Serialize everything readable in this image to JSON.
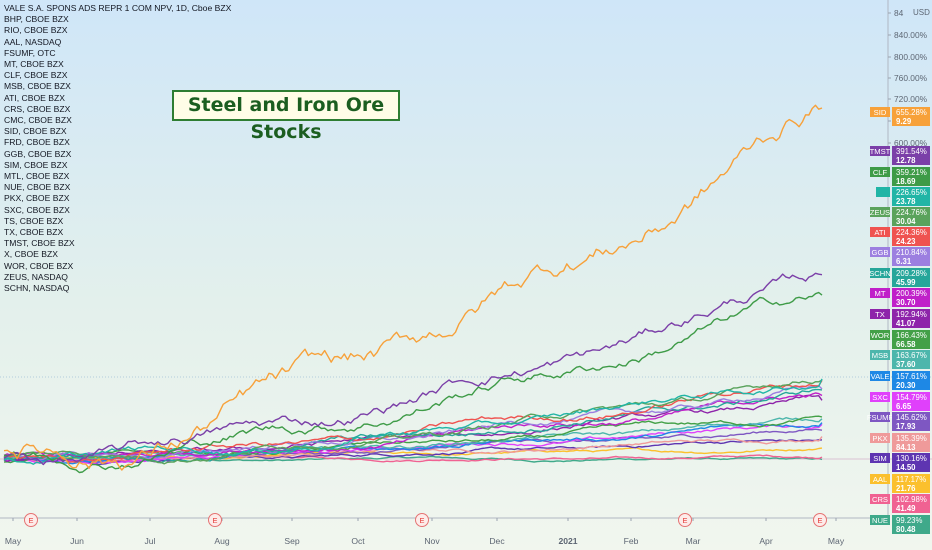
{
  "chart_data": {
    "type": "line",
    "title": "VALE S.A. SPONS ADS REPR 1 COM NPV, 1D, Cboe BZX",
    "compare_symbols": [
      "BHP, CBOE BZX",
      "RIO, CBOE BZX",
      "AAL, NASDAQ",
      "FSUMF, OTC",
      "MT, CBOE BZX",
      "CLF, CBOE BZX",
      "MSB, CBOE BZX",
      "ATI, CBOE BZX",
      "CRS, CBOE BZX",
      "CMC, CBOE BZX",
      "SID, CBOE BZX",
      "FRD, CBOE BZX",
      "GGB, CBOE BZX",
      "SIM, CBOE BZX",
      "MTL, CBOE BZX",
      "NUE, CBOE BZX",
      "PKX, CBOE BZX",
      "SXC, CBOE BZX",
      "TS, CBOE BZX",
      "TX, CBOE BZX",
      "TMST, CBOE BZX",
      "X, CBOE BZX",
      "WOR, CBOE BZX",
      "ZEUS, NASDAQ",
      "SCHN, NASDAQ"
    ],
    "annotation": "Steel and Iron Ore Stocks",
    "y_axis": {
      "unit": "USD",
      "ticks": [
        "84",
        "840.00%",
        "800.00%",
        "760.00%",
        "720.00%",
        "680.00%",
        "600.00%"
      ],
      "scale": "percent"
    },
    "x_axis": {
      "ticks": [
        "May",
        "Jun",
        "Jul",
        "Aug",
        "Sep",
        "Oct",
        "Nov",
        "Dec",
        "2021",
        "Feb",
        "Mar",
        "Apr",
        "May"
      ]
    },
    "earnings_marker": "E",
    "grid": false,
    "series": [
      {
        "name": "SID",
        "pct": "655.28%",
        "price": "9.29",
        "color": "#f7a13a",
        "final": 655.28
      },
      {
        "name": "TMST",
        "pct": "391.54%",
        "price": "12.78",
        "color": "#7b3fa8",
        "final": 391.54
      },
      {
        "name": "CLF",
        "pct": "359.21%",
        "price": "18.69",
        "color": "#3e9b47",
        "final": 359.21
      },
      {
        "name": "",
        "pct": "226.65%",
        "price": "23.78",
        "color": "#21b5a6",
        "final": 226.65
      },
      {
        "name": "ZEUS",
        "pct": "224.76%",
        "price": "30.04",
        "color": "#5aa35c",
        "final": 224.76
      },
      {
        "name": "ATI",
        "pct": "224.36%",
        "price": "24.23",
        "color": "#ef5350",
        "final": 224.36
      },
      {
        "name": "GGB",
        "pct": "210.84%",
        "price": "6.31",
        "color": "#9c7fe0",
        "final": 210.84
      },
      {
        "name": "SCHN",
        "pct": "209.28%",
        "price": "45.99",
        "color": "#26a69a",
        "final": 209.28
      },
      {
        "name": "MT",
        "pct": "200.39%",
        "price": "30.70",
        "color": "#c020c9",
        "final": 200.39
      },
      {
        "name": "TX",
        "pct": "192.94%",
        "price": "41.07",
        "color": "#8e24aa",
        "final": 192.94
      },
      {
        "name": "WOR",
        "pct": "166.43%",
        "price": "66.58",
        "color": "#43a047",
        "final": 166.43
      },
      {
        "name": "MSB",
        "pct": "163.67%",
        "price": "37.60",
        "color": "#4db6ac",
        "final": 163.67
      },
      {
        "name": "VALE",
        "pct": "157.61%",
        "price": "20.30",
        "color": "#1e88e5",
        "final": 157.61
      },
      {
        "name": "SXC",
        "pct": "154.79%",
        "price": "6.65",
        "color": "#e040fb",
        "final": 154.79
      },
      {
        "name": "FSUMF",
        "pct": "145.62%",
        "price": "17.93",
        "color": "#7e57c2",
        "final": 145.62
      },
      {
        "name": "PKX",
        "pct": "135.39%",
        "price": "84.13",
        "color": "#ef9a9a",
        "final": 135.39
      },
      {
        "name": "SIM",
        "pct": "130.16%",
        "price": "14.50",
        "color": "#5e35b1",
        "final": 130.16
      },
      {
        "name": "AAL",
        "pct": "117.17%",
        "price": "21.76",
        "color": "#fbc02d",
        "final": 117.17
      },
      {
        "name": "CRS",
        "pct": "102.98%",
        "price": "41.49",
        "color": "#f06292",
        "final": 102.98
      },
      {
        "name": "NUE",
        "pct": "99.23%",
        "price": "80.48",
        "color": "#3fa98a",
        "final": 99.23
      }
    ]
  }
}
